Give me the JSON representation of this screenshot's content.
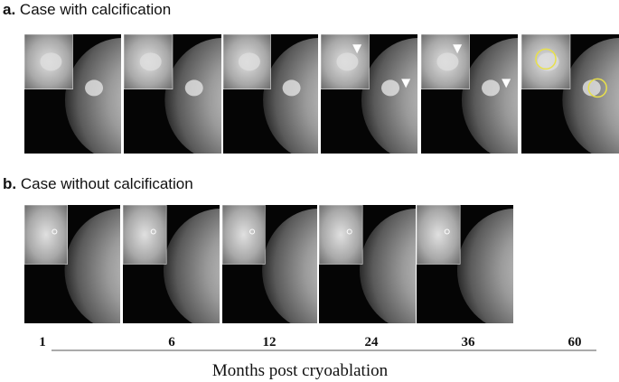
{
  "panels": [
    {
      "label": "a.",
      "title": "Case with calcification"
    },
    {
      "label": "b.",
      "title": "Case without calcification"
    }
  ],
  "x_axis": {
    "labels": [
      1,
      6,
      12,
      24,
      36,
      60
    ],
    "title": "Months post cryoablation"
  }
}
